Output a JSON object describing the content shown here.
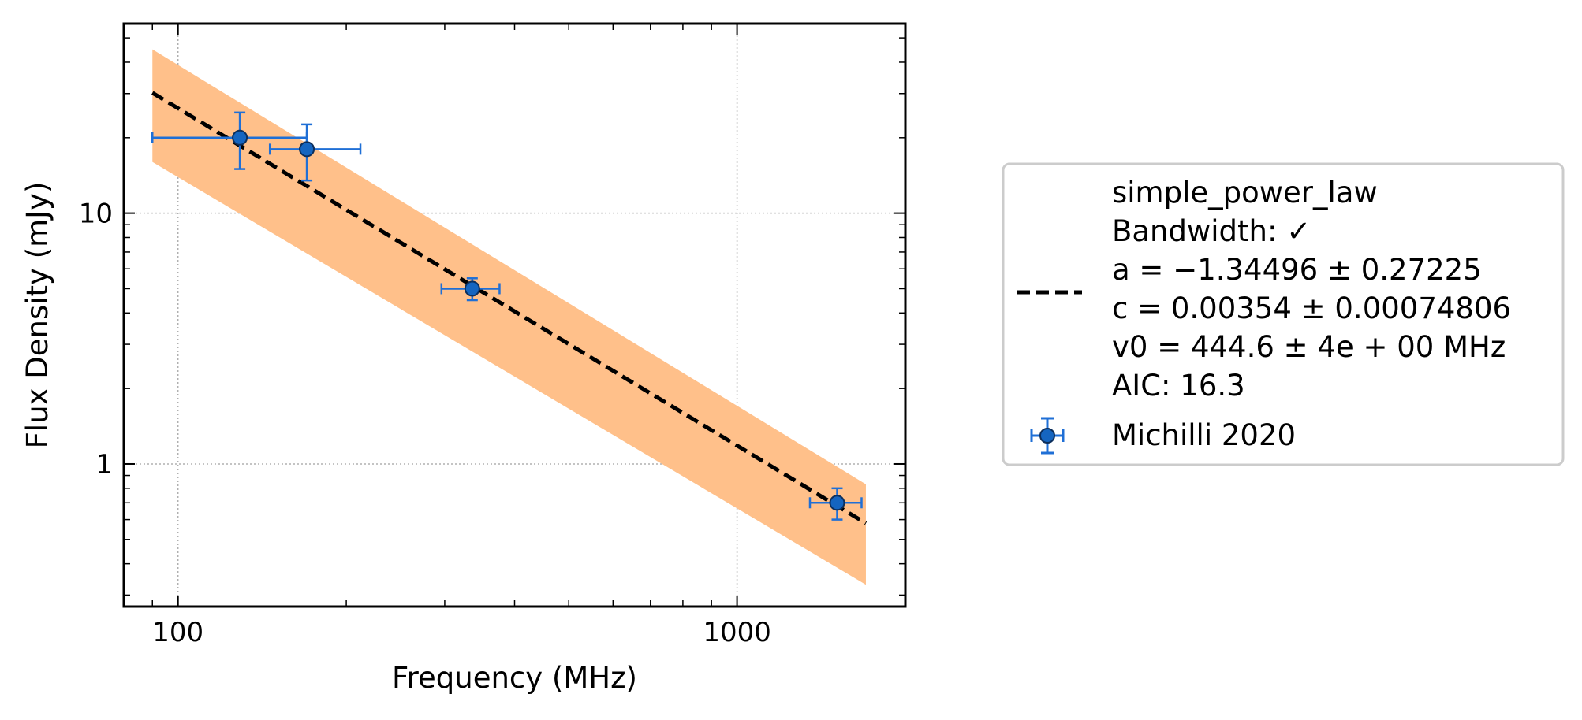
{
  "chart_data": {
    "type": "scatter",
    "xlabel": "Frequency (MHz)",
    "ylabel": "Flux Density (mJy)",
    "xscale": "log",
    "yscale": "log",
    "xlim": [
      80,
      2000
    ],
    "ylim": [
      0.27,
      57
    ],
    "xticks": [
      {
        "value": 100,
        "label": "100"
      },
      {
        "value": 1000,
        "label": "1000"
      }
    ],
    "yticks": [
      {
        "value": 1,
        "label": "1"
      },
      {
        "value": 10,
        "label": "10"
      }
    ],
    "grid": true,
    "legend_position": "outside-right",
    "series": [
      {
        "name": "Michilli 2020",
        "kind": "errorbar",
        "color": "#1f6fd6",
        "marker_fill": "#1565c0",
        "x": [
          129,
          170,
          336,
          1510
        ],
        "y": [
          20,
          18,
          5.0,
          0.7
        ],
        "x_err_low": [
          39,
          24,
          40,
          160
        ],
        "x_err_high": [
          41,
          42,
          40,
          160
        ],
        "y_err_low": [
          5.0,
          4.5,
          0.5,
          0.1
        ],
        "y_err_high": [
          5.2,
          4.6,
          0.5,
          0.1
        ]
      }
    ],
    "fit": {
      "model": "simple_power_law",
      "line_color": "#000000",
      "band_color": "#ffc08a",
      "x": [
        90,
        1700
      ],
      "y": [
        30.2,
        0.58
      ],
      "band_upper": [
        45,
        0.83
      ],
      "band_lower": [
        16,
        0.33
      ]
    },
    "legend": {
      "fit_label_lines": [
        "simple_power_law",
        "Bandwidth: ✓",
        "a = −1.34496 ± 0.27225",
        "c = 0.00354 ± 0.00074806",
        "v0 = 444.6 ± 4e + 00 MHz",
        "AIC: 16.3"
      ],
      "data_label": "Michilli 2020"
    }
  }
}
